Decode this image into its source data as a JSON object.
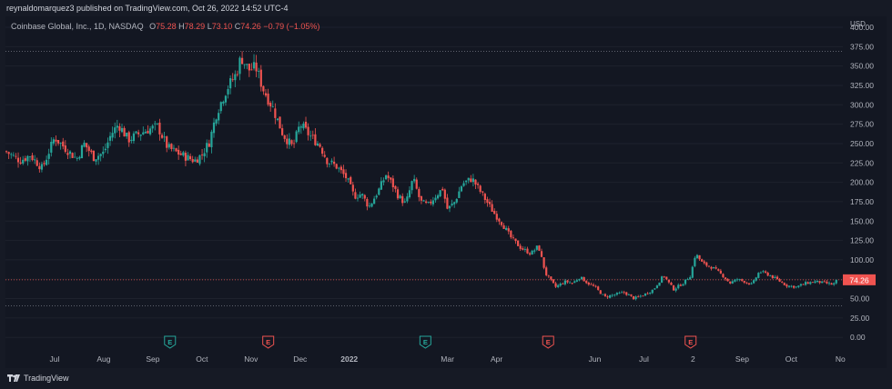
{
  "header": {
    "publish_text": "reynaldomarquez3 published on TradingView.com, Oct 26, 2022 14:52 UTC-4"
  },
  "legend": {
    "symbol": "Coinbase Global, Inc., 1D, NASDAQ",
    "o_label": "O",
    "o_value": "75.28",
    "h_label": "H",
    "h_value": "78.29",
    "l_label": "L",
    "l_value": "73.10",
    "c_label": "C",
    "c_value": "74.26",
    "change": "−0.79 (−1.05%)"
  },
  "footer": {
    "brand": "TradingView"
  },
  "colors": {
    "background": "#131722",
    "up": "#26a69a",
    "down": "#ef5350",
    "axis_text": "#b2b5be",
    "grid": "#1e222d",
    "badge_up": "#26a69a",
    "badge_down": "#ef5350"
  },
  "chart_data": {
    "type": "candlestick",
    "currency_label": "USD",
    "y_ticks": [
      "400.00",
      "375.00",
      "350.00",
      "325.00",
      "300.00",
      "275.00",
      "250.00",
      "225.00",
      "200.00",
      "175.00",
      "150.00",
      "125.00",
      "100.00",
      "75.00",
      "50.00",
      "25.00",
      "0.00"
    ],
    "ylim": [
      -15,
      400
    ],
    "x_ticks": [
      "Jul",
      "Aug",
      "Sep",
      "Oct",
      "Nov",
      "Dec",
      "2022",
      "Mar",
      "Apr",
      "Jun",
      "Jul",
      "2",
      "Sep",
      "Oct",
      "No"
    ],
    "x_tick_month_index": [
      1,
      2,
      3,
      4,
      5,
      6,
      7,
      9,
      10,
      12,
      13,
      14,
      15,
      16,
      17
    ],
    "xlim_month_index": [
      0.0,
      17.05
    ],
    "last_price": "74.26",
    "last_price_value": 74.26,
    "horizontal_lines": [
      {
        "value": 368.9
      },
      {
        "value": 40.8
      }
    ],
    "earnings_events": [
      {
        "label": "E",
        "month_index": 3.35,
        "direction": "up"
      },
      {
        "label": "E",
        "month_index": 5.35,
        "direction": "down"
      },
      {
        "label": "E",
        "month_index": 8.55,
        "direction": "up"
      },
      {
        "label": "E",
        "month_index": 11.05,
        "direction": "down"
      },
      {
        "label": "E",
        "month_index": 13.95,
        "direction": "down"
      }
    ],
    "price_path": [
      [
        0.0,
        240
      ],
      [
        0.3,
        228
      ],
      [
        0.5,
        235
      ],
      [
        0.75,
        218
      ],
      [
        1.0,
        258
      ],
      [
        1.2,
        245
      ],
      [
        1.45,
        230
      ],
      [
        1.6,
        250
      ],
      [
        1.8,
        232
      ],
      [
        2.0,
        238
      ],
      [
        2.15,
        262
      ],
      [
        2.3,
        275
      ],
      [
        2.5,
        255
      ],
      [
        2.7,
        262
      ],
      [
        2.9,
        268
      ],
      [
        3.1,
        272
      ],
      [
        3.3,
        245
      ],
      [
        3.5,
        238
      ],
      [
        3.7,
        232
      ],
      [
        3.85,
        228
      ],
      [
        4.0,
        236
      ],
      [
        4.15,
        252
      ],
      [
        4.3,
        290
      ],
      [
        4.5,
        320
      ],
      [
        4.7,
        340
      ],
      [
        4.8,
        362
      ],
      [
        4.95,
        345
      ],
      [
        5.1,
        348
      ],
      [
        5.25,
        320
      ],
      [
        5.45,
        295
      ],
      [
        5.65,
        262
      ],
      [
        5.85,
        245
      ],
      [
        6.0,
        275
      ],
      [
        6.2,
        260
      ],
      [
        6.4,
        248
      ],
      [
        6.55,
        228
      ],
      [
        6.75,
        220
      ],
      [
        6.95,
        205
      ],
      [
        7.1,
        182
      ],
      [
        7.25,
        185
      ],
      [
        7.4,
        168
      ],
      [
        7.6,
        190
      ],
      [
        7.75,
        210
      ],
      [
        7.9,
        195
      ],
      [
        8.0,
        182
      ],
      [
        8.15,
        172
      ],
      [
        8.3,
        205
      ],
      [
        8.45,
        175
      ],
      [
        8.6,
        170
      ],
      [
        8.75,
        182
      ],
      [
        8.9,
        192
      ],
      [
        9.0,
        165
      ],
      [
        9.15,
        175
      ],
      [
        9.3,
        198
      ],
      [
        9.5,
        205
      ],
      [
        9.65,
        190
      ],
      [
        9.8,
        175
      ],
      [
        9.95,
        160
      ],
      [
        10.1,
        148
      ],
      [
        10.3,
        128
      ],
      [
        10.5,
        115
      ],
      [
        10.7,
        108
      ],
      [
        10.85,
        118
      ],
      [
        11.0,
        82
      ],
      [
        11.2,
        65
      ],
      [
        11.4,
        72
      ],
      [
        11.55,
        70
      ],
      [
        11.7,
        78
      ],
      [
        11.85,
        70
      ],
      [
        12.0,
        65
      ],
      [
        12.2,
        52
      ],
      [
        12.4,
        55
      ],
      [
        12.6,
        58
      ],
      [
        12.8,
        50
      ],
      [
        13.0,
        55
      ],
      [
        13.2,
        62
      ],
      [
        13.4,
        80
      ],
      [
        13.6,
        62
      ],
      [
        13.8,
        70
      ],
      [
        13.95,
        80
      ],
      [
        14.05,
        108
      ],
      [
        14.2,
        95
      ],
      [
        14.4,
        90
      ],
      [
        14.6,
        80
      ],
      [
        14.75,
        70
      ],
      [
        14.9,
        75
      ],
      [
        15.05,
        72
      ],
      [
        15.2,
        68
      ],
      [
        15.35,
        85
      ],
      [
        15.5,
        82
      ],
      [
        15.7,
        75
      ],
      [
        15.9,
        67
      ],
      [
        16.1,
        65
      ],
      [
        16.3,
        70
      ],
      [
        16.5,
        72
      ],
      [
        16.7,
        70
      ],
      [
        16.85,
        68
      ],
      [
        16.95,
        74.26
      ]
    ]
  }
}
